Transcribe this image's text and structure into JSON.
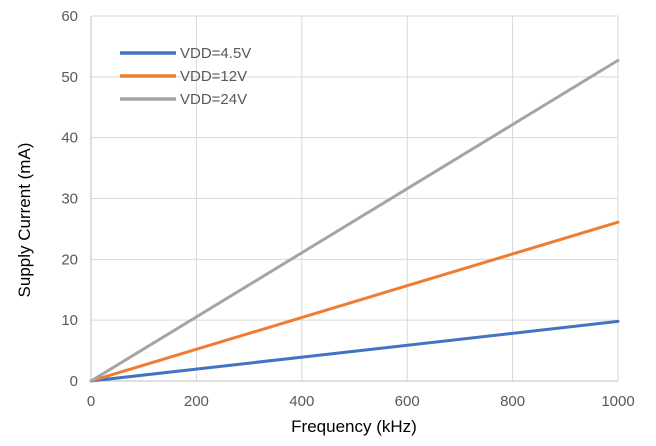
{
  "chart_data": {
    "type": "line",
    "xlabel": "Frequency (kHz)",
    "ylabel": "Supply  Current (mA)",
    "xlim": [
      0,
      1000
    ],
    "ylim": [
      0,
      60
    ],
    "x_ticks": [
      0,
      200,
      400,
      600,
      800,
      1000
    ],
    "y_ticks": [
      0,
      10,
      20,
      30,
      40,
      50,
      60
    ],
    "grid": true,
    "legend_position": "top-left",
    "series": [
      {
        "name": "VDD=4.5V",
        "color": "#4472C4",
        "x": [
          0,
          1000
        ],
        "y": [
          0,
          9.8
        ]
      },
      {
        "name": "VDD=12V",
        "color": "#ED7D31",
        "x": [
          0,
          1000
        ],
        "y": [
          0,
          26.1
        ]
      },
      {
        "name": "VDD=24V",
        "color": "#A5A5A5",
        "x": [
          0,
          1000
        ],
        "y": [
          0,
          52.7
        ]
      }
    ]
  }
}
